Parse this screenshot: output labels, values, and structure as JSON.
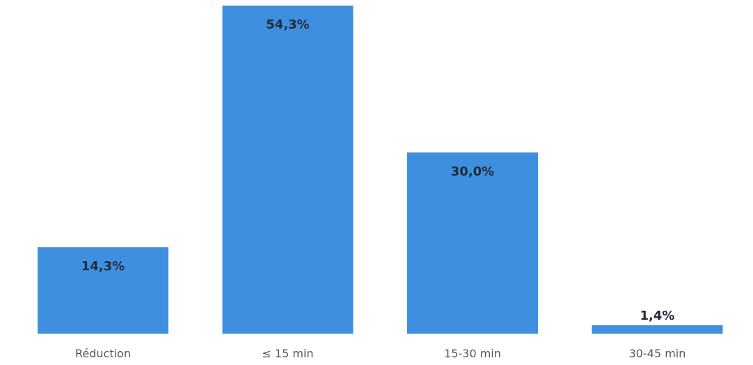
{
  "chart_data": {
    "type": "bar",
    "categories": [
      "Réduction",
      "≤ 15 min",
      "15-30 min",
      "30-45 min"
    ],
    "values": [
      14.3,
      54.3,
      30.0,
      1.4
    ],
    "data_labels": [
      "14,3%",
      "54,3%",
      "30,0%",
      "1,4%"
    ],
    "ylim": [
      0,
      54.3
    ],
    "grid": false,
    "legend": "none",
    "bar_color": "#3f8fe0"
  }
}
